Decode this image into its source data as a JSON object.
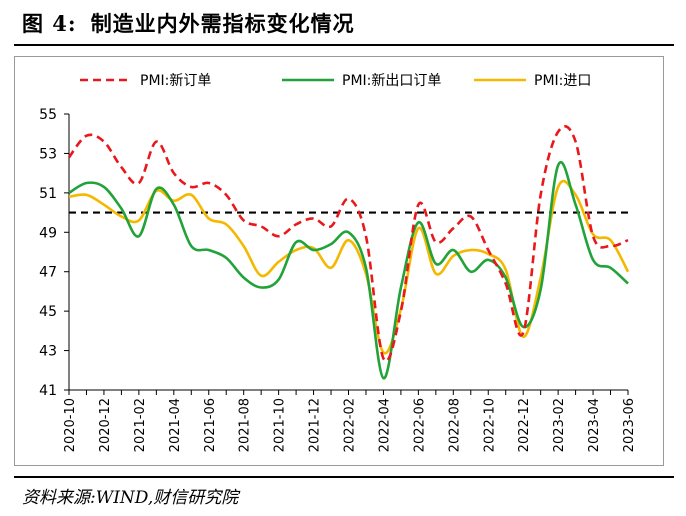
{
  "figure": {
    "title_prefix": "图 4:",
    "title_text": "制造业内外需指标变化情况",
    "source": "资料来源:WIND,财信研究院"
  },
  "chart_data": {
    "type": "line",
    "title": "",
    "xlabel": "",
    "ylabel": "",
    "ylim": [
      41,
      55
    ],
    "yticks": [
      41,
      43,
      45,
      47,
      49,
      51,
      53,
      55
    ],
    "grid": false,
    "legend_position": "top",
    "x": [
      "2020-10",
      "2020-11",
      "2020-12",
      "2021-01",
      "2021-02",
      "2021-03",
      "2021-04",
      "2021-05",
      "2021-06",
      "2021-07",
      "2021-08",
      "2021-09",
      "2021-10",
      "2021-11",
      "2021-12",
      "2022-01",
      "2022-02",
      "2022-03",
      "2022-04",
      "2022-05",
      "2022-06",
      "2022-07",
      "2022-08",
      "2022-09",
      "2022-10",
      "2022-11",
      "2022-12",
      "2023-01",
      "2023-02",
      "2023-03",
      "2023-04",
      "2023-05",
      "2023-06"
    ],
    "xtick_labels": [
      "2020-10",
      "2020-12",
      "2021-02",
      "2021-04",
      "2021-06",
      "2021-08",
      "2021-10",
      "2021-12",
      "2022-02",
      "2022-04",
      "2022-06",
      "2022-08",
      "2022-10",
      "2022-12",
      "2023-02",
      "2023-04",
      "2023-06"
    ],
    "reference_line": {
      "y": 50,
      "style": "dashed",
      "color": "#000000"
    },
    "series": [
      {
        "name": "PMI:新订单",
        "color": "#e8181c",
        "style": "dashed",
        "values": [
          52.8,
          53.9,
          53.6,
          52.3,
          51.5,
          53.6,
          52.0,
          51.3,
          51.5,
          50.9,
          49.6,
          49.3,
          48.8,
          49.4,
          49.7,
          49.3,
          50.7,
          48.8,
          42.6,
          45.0,
          50.4,
          48.5,
          49.2,
          49.8,
          48.1,
          46.4,
          43.9,
          50.9,
          54.1,
          53.6,
          48.8,
          48.3,
          48.6
        ]
      },
      {
        "name": "PMI:新出口订单",
        "color": "#21a33a",
        "style": "solid",
        "values": [
          51.0,
          51.5,
          51.3,
          50.2,
          48.8,
          51.2,
          50.4,
          48.3,
          48.1,
          47.7,
          46.7,
          46.2,
          46.6,
          48.5,
          48.1,
          48.4,
          49.0,
          47.2,
          41.6,
          46.2,
          49.5,
          47.4,
          48.1,
          47.0,
          47.6,
          46.7,
          44.2,
          46.1,
          52.4,
          50.4,
          47.6,
          47.2,
          46.4
        ]
      },
      {
        "name": "PMI:进口",
        "color": "#f5b800",
        "style": "solid",
        "values": [
          50.8,
          50.9,
          50.4,
          49.8,
          49.6,
          51.1,
          50.6,
          50.9,
          49.7,
          49.4,
          48.3,
          46.8,
          47.5,
          48.1,
          48.2,
          47.2,
          48.6,
          46.9,
          42.9,
          45.1,
          49.2,
          46.9,
          47.8,
          48.1,
          47.9,
          47.1,
          43.7,
          46.7,
          51.3,
          50.9,
          48.9,
          48.6,
          47.0
        ]
      }
    ]
  }
}
